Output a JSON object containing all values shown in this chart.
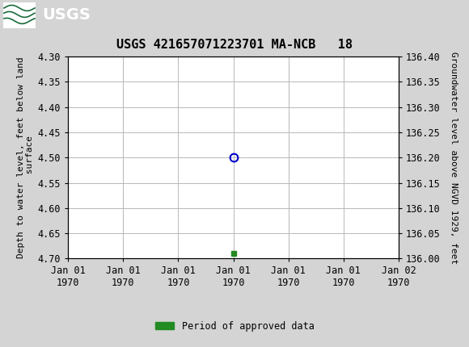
{
  "title": "USGS 421657071223701 MA-NCB   18",
  "left_ylabel": "Depth to water level, feet below land\n surface",
  "right_ylabel": "Groundwater level above NGVD 1929, feet",
  "ylim_left_top": 4.3,
  "ylim_left_bottom": 4.7,
  "ylim_right_top": 136.4,
  "ylim_right_bottom": 136.0,
  "yticks_left": [
    4.3,
    4.35,
    4.4,
    4.45,
    4.5,
    4.55,
    4.6,
    4.65,
    4.7
  ],
  "yticks_right": [
    136.4,
    136.35,
    136.3,
    136.25,
    136.2,
    136.15,
    136.1,
    136.05,
    136.0
  ],
  "xtick_positions": [
    0,
    1,
    2,
    3,
    4,
    5,
    6
  ],
  "xtick_labels": [
    "Jan 01\n1970",
    "Jan 01\n1970",
    "Jan 01\n1970",
    "Jan 01\n1970",
    "Jan 01\n1970",
    "Jan 01\n1970",
    "Jan 02\n1970"
  ],
  "xlim": [
    0,
    6
  ],
  "data_point_x": 3,
  "data_point_y": 4.5,
  "green_square_x": 3,
  "green_square_y": 4.69,
  "header_color": "#1a6b3c",
  "bg_color": "#d4d4d4",
  "plot_bg_color": "#ffffff",
  "grid_color": "#b8b8b8",
  "circle_edgecolor": "#0000cc",
  "green_color": "#228B22",
  "legend_label": "Period of approved data",
  "font_family": "monospace",
  "title_fontsize": 11,
  "axis_fontsize": 8,
  "tick_fontsize": 8.5
}
